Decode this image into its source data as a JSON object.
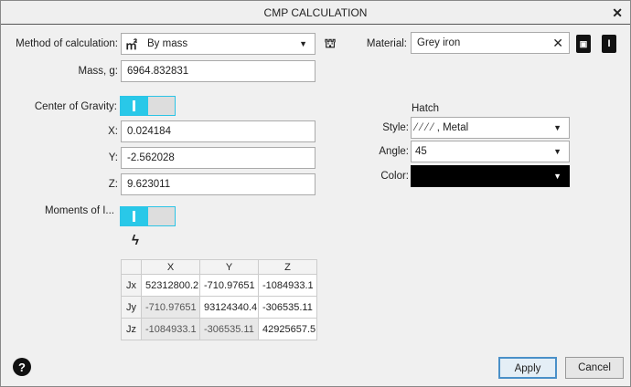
{
  "title": "CMP CALCULATION",
  "method": {
    "label": "Method of calculation:",
    "value": "By mass"
  },
  "mass": {
    "label": "Mass, g:",
    "value": "6964.832831"
  },
  "cog": {
    "label": "Center of Gravity:",
    "toggle_on": true,
    "x_label": "X:",
    "x": "0.024184",
    "y_label": "Y:",
    "y": "-2.562028",
    "z_label": "Z:",
    "z": "9.623011"
  },
  "moments": {
    "label": "Moments of I...",
    "toggle_on": true,
    "headers": [
      "X",
      "Y",
      "Z"
    ],
    "rows": [
      {
        "label": "Jx",
        "values": [
          "52312800.2",
          "-710.97651",
          "-1084933.1"
        ]
      },
      {
        "label": "Jy",
        "values": [
          "-710.97651",
          "93124340.4",
          "-306535.11"
        ]
      },
      {
        "label": "Jz",
        "values": [
          "-1084933.1",
          "-306535.11",
          "42925657.5"
        ]
      }
    ]
  },
  "material": {
    "label": "Material:",
    "value": "Grey iron"
  },
  "hatch": {
    "title": "Hatch",
    "style_label": "Style:",
    "style_value": ", Metal",
    "angle_label": "Angle:",
    "angle_value": "45",
    "color_label": "Color:",
    "color_value": "#000000"
  },
  "buttons": {
    "apply": "Apply",
    "cancel": "Cancel"
  }
}
